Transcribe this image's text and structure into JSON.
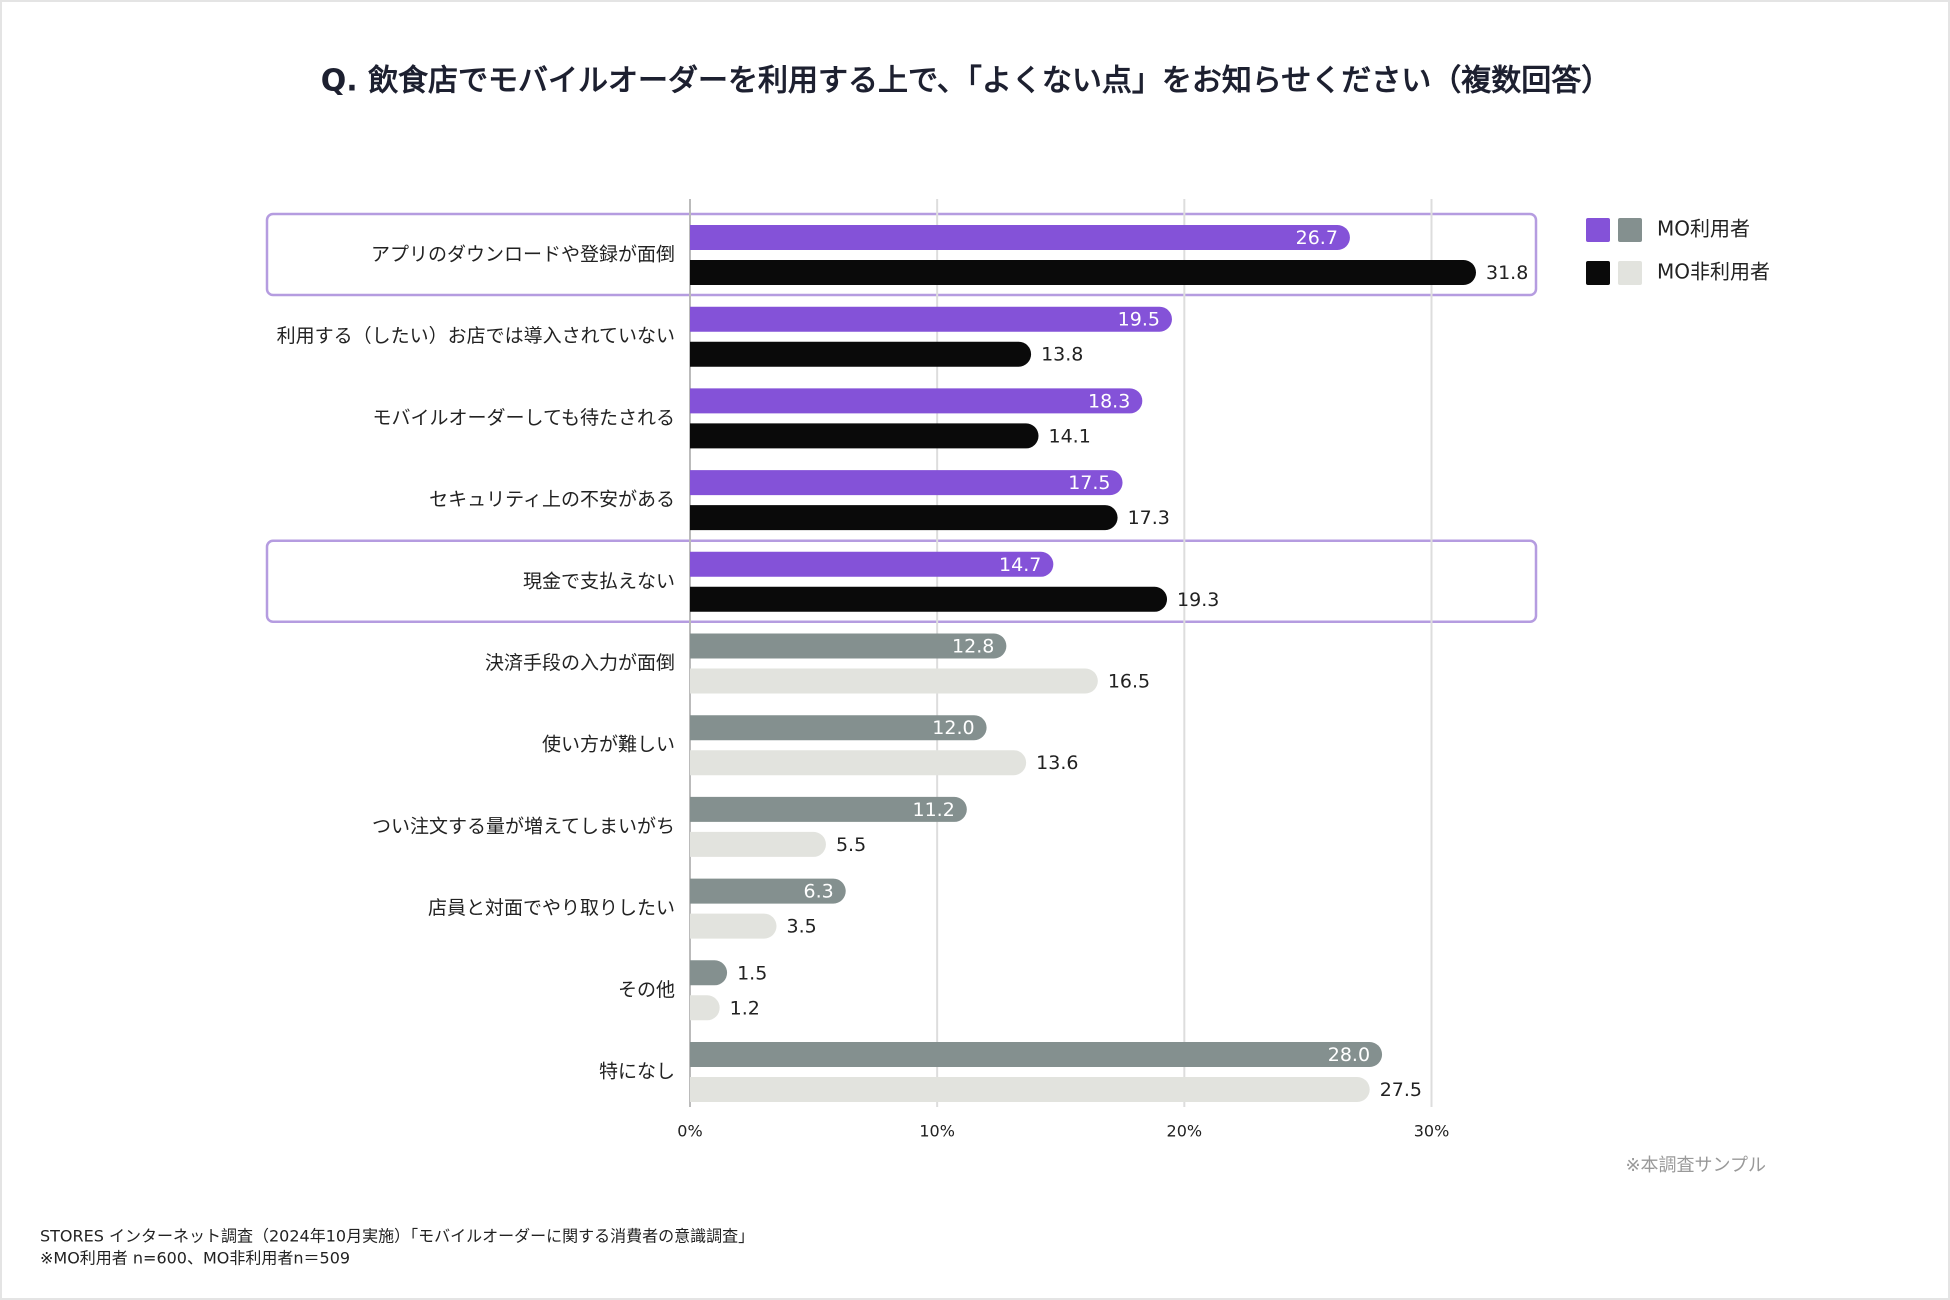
{
  "chart_data": {
    "type": "hbar",
    "title": "Q. 飲食店でモバイルオーダーを利用する上で、「よくない点」をお知らせください（複数回答）",
    "categories": [
      "アプリのダウンロードや登録が面倒",
      "利用する（したい）お店では導入されていない",
      "モバイルオーダーしても待たされる",
      "セキュリティ上の不安がある",
      "現金で支払えない",
      "決済手段の入力が面倒",
      "使い方が難しい",
      "つい注文する量が増えてしまいがち",
      "店員と対面でやり取りしたい",
      "その他",
      "特になし"
    ],
    "series": [
      {
        "name": "MO利用者",
        "colors": [
          "#8452d8",
          "#8452d8",
          "#8452d8",
          "#8452d8",
          "#8452d8",
          "#84908f",
          "#84908f",
          "#84908f",
          "#84908f",
          "#84908f",
          "#84908f"
        ],
        "values": [
          26.7,
          19.5,
          18.3,
          17.5,
          14.7,
          12.8,
          12.0,
          11.2,
          6.3,
          1.5,
          28.0
        ],
        "value_labels": [
          "26.7",
          "19.5",
          "18.3",
          "17.5",
          "14.7",
          "12.8",
          "12.0",
          "11.2",
          "6.3",
          "1.5",
          "28.0"
        ]
      },
      {
        "name": "MO非利用者",
        "colors": [
          "#0a0a0a",
          "#0a0a0a",
          "#0a0a0a",
          "#0a0a0a",
          "#0a0a0a",
          "#e2e3de",
          "#e2e3de",
          "#e2e3de",
          "#e2e3de",
          "#e2e3de",
          "#e2e3de"
        ],
        "values": [
          31.8,
          13.8,
          14.1,
          17.3,
          19.3,
          16.5,
          13.6,
          5.5,
          3.5,
          1.2,
          27.5
        ],
        "value_labels": [
          "31.8",
          "13.8",
          "14.1",
          "17.3",
          "19.3",
          "16.5",
          "13.6",
          "5.5",
          "3.5",
          "1.2",
          "27.5"
        ]
      }
    ],
    "highlighted_categories": [
      0,
      4
    ],
    "xlim": [
      0,
      30
    ],
    "xticks": [
      {
        "value": 0,
        "label": "0%"
      },
      {
        "value": 10,
        "label": "10%"
      },
      {
        "value": 20,
        "label": "20%"
      },
      {
        "value": 30,
        "label": "30%"
      }
    ],
    "grid": true,
    "legend": "top-right",
    "note": "※本調査サンプル",
    "source": "STORES インターネット調査（2024年10月実施）「モバイルオーダーに関する消費者の意識調査」",
    "sample": "※MO利用者 n=600、MO非利用者n＝509"
  }
}
